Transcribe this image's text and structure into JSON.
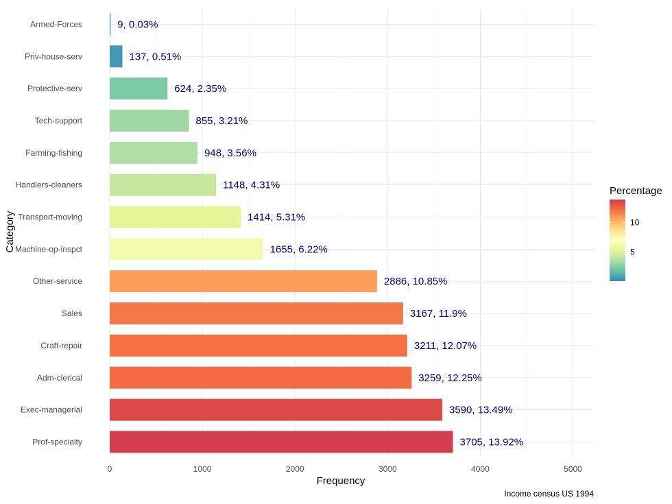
{
  "chart_data": {
    "type": "bar",
    "orientation": "horizontal",
    "xlabel": "Frequency",
    "ylabel": "Category",
    "caption": "Income census US 1994",
    "xlim": [
      0,
      5200
    ],
    "x_ticks": [
      0,
      1000,
      2000,
      3000,
      4000,
      5000
    ],
    "grid": true,
    "categories": [
      "Prof-specialty",
      "Exec-managerial",
      "Adm-clerical",
      "Craft-repair",
      "Sales",
      "Other-service",
      "Machine-op-inspct",
      "Transport-moving",
      "Handlers-cleaners",
      "Farming-fishing",
      "Tech-support",
      "Protective-serv",
      "Priv-house-serv",
      "Armed-Forces"
    ],
    "values": [
      3705,
      3590,
      3259,
      3211,
      3167,
      2886,
      1655,
      1414,
      1148,
      948,
      855,
      624,
      137,
      9
    ],
    "percentages": [
      13.92,
      13.49,
      12.25,
      12.07,
      11.9,
      10.85,
      6.22,
      5.31,
      4.31,
      3.56,
      3.21,
      2.35,
      0.51,
      0.03
    ],
    "data_labels": [
      "3705, 13.92%",
      "3590, 13.49%",
      "3259, 12.25%",
      "3211, 12.07%",
      "3167, 11.9%",
      "2886, 10.85%",
      "1655, 6.22%",
      "1414, 5.31%",
      "1148, 4.31%",
      "948, 3.56%",
      "855, 3.21%",
      "624, 2.35%",
      "137, 0.51%",
      "9, 0.03%"
    ],
    "legend": {
      "title": "Percentage",
      "placement": "right",
      "ticks": [
        5,
        10
      ],
      "range": [
        0.03,
        13.92
      ],
      "palette": [
        "#3288bd",
        "#66c2a5",
        "#abdda4",
        "#e6f598",
        "#ffffbf",
        "#fee08b",
        "#fdae61",
        "#f46d43",
        "#d53e4f"
      ]
    }
  }
}
